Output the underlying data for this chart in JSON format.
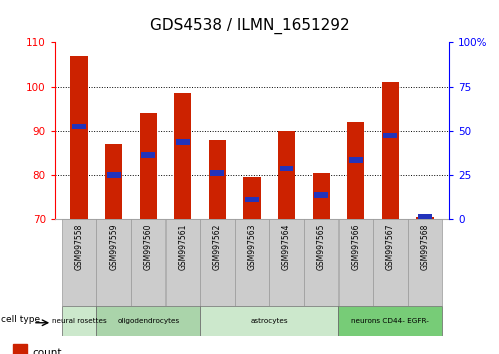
{
  "title": "GDS4538 / ILMN_1651292",
  "samples": [
    "GSM997558",
    "GSM997559",
    "GSM997560",
    "GSM997561",
    "GSM997562",
    "GSM997563",
    "GSM997564",
    "GSM997565",
    "GSM997566",
    "GSM997567",
    "GSM997568"
  ],
  "count_values": [
    107.0,
    87.0,
    94.0,
    98.5,
    88.0,
    79.5,
    90.0,
    80.5,
    92.0,
    101.0,
    70.5
  ],
  "percentile_positions": [
    91.0,
    80.0,
    84.5,
    87.5,
    80.5,
    74.5,
    81.5,
    75.5,
    83.5,
    89.0,
    70.5
  ],
  "ylim_left": [
    70,
    110
  ],
  "ylim_right": [
    0,
    100
  ],
  "yticks_left": [
    70,
    80,
    90,
    100,
    110
  ],
  "yticks_right": [
    0,
    25,
    50,
    75,
    100
  ],
  "grid_lines": [
    80,
    90,
    100
  ],
  "cell_types": [
    {
      "label": "neural rosettes",
      "color": "#cce8cc",
      "start": 0,
      "end": 1
    },
    {
      "label": "oligodendrocytes",
      "color": "#aad4aa",
      "start": 1,
      "end": 4
    },
    {
      "label": "astrocytes",
      "color": "#cce8cc",
      "start": 4,
      "end": 8
    },
    {
      "label": "neurons CD44- EGFR-",
      "color": "#77cc77",
      "start": 8,
      "end": 11
    }
  ],
  "bar_color": "#cc2200",
  "blue_color": "#2233bb",
  "bar_width": 0.5,
  "gray_box_color": "#cccccc",
  "gray_box_edge": "#999999",
  "background_color": "#ffffff",
  "plot_bg_color": "#ffffff"
}
